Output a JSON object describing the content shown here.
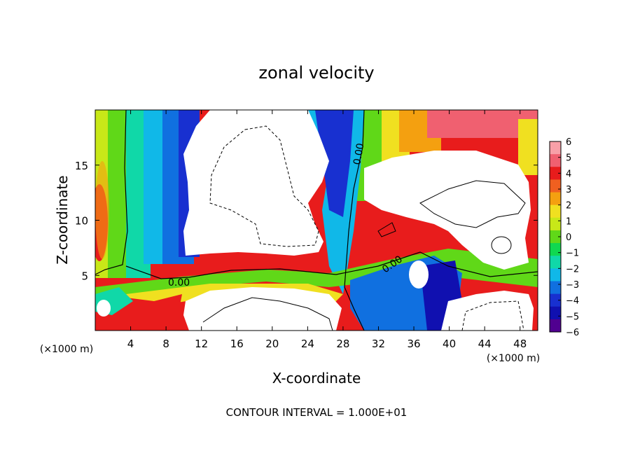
{
  "chart_data": {
    "type": "heatmap",
    "title": "zonal velocity",
    "xlabel": "X-coordinate",
    "ylabel": "Z-coordinate",
    "x_unit_label": "(×1000 m)",
    "x_unit_label_right": "(×1000 m)",
    "footer": "CONTOUR INTERVAL = 1.000E+01",
    "xlim": [
      0,
      50
    ],
    "ylim": [
      0,
      20
    ],
    "x_ticks": [
      4,
      8,
      12,
      16,
      20,
      24,
      28,
      32,
      36,
      40,
      44,
      48
    ],
    "y_ticks": [
      5,
      10,
      15
    ],
    "x_tick_labels": [
      "4",
      "8",
      "12",
      "16",
      "20",
      "24",
      "28",
      "32",
      "36",
      "40",
      "44",
      "48"
    ],
    "y_tick_labels": [
      "5",
      "10",
      "15"
    ],
    "colorbar": {
      "min": -6,
      "max": 6,
      "ticks": [
        6,
        5,
        4,
        3,
        2,
        1,
        0,
        -1,
        -2,
        -3,
        -4,
        -5,
        -6
      ],
      "tick_labels": [
        "6",
        "5",
        "4",
        "3",
        "2",
        "1",
        "0",
        "−1",
        "−2",
        "−3",
        "−4",
        "−5",
        "−6"
      ],
      "colors": [
        "#f8a0a8",
        "#f06070",
        "#e81c1c",
        "#f06020",
        "#f4a010",
        "#f0e020",
        "#c8e818",
        "#60d818",
        "#10d850",
        "#10d8a8",
        "#10b8e8",
        "#1070e0",
        "#1830d0",
        "#1010b0",
        "#500090"
      ]
    },
    "contour_labels": [
      "0.00",
      "0.00",
      "0.00"
    ],
    "white_regions_note": ""
  }
}
